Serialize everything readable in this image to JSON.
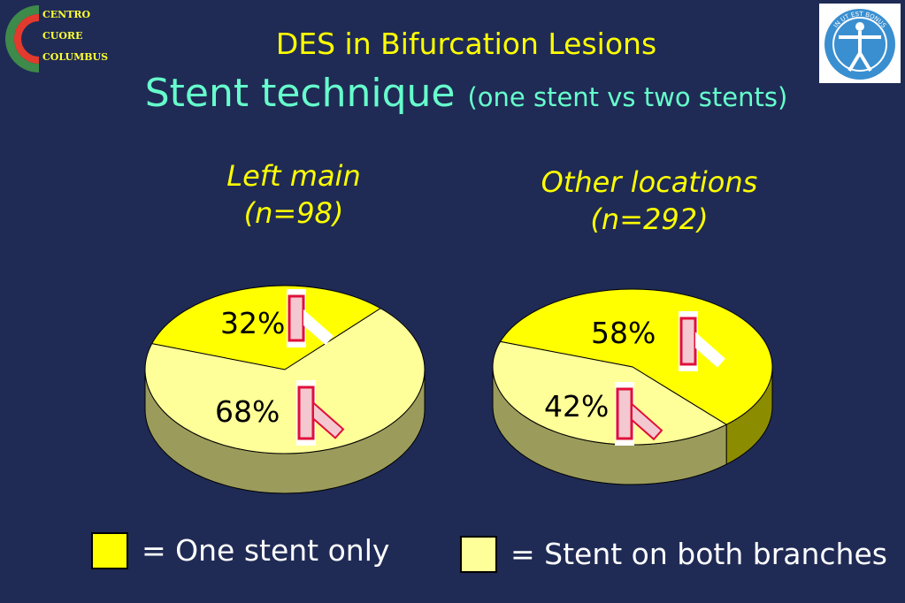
{
  "logo_left": {
    "lines": [
      "CENTRO",
      "CUORE",
      "COLUMBUS"
    ]
  },
  "logo_right": {
    "text": "IN UT EST BONUS"
  },
  "header": {
    "title": "DES in Bifurcation Lesions",
    "subtitle_main": "Stent technique",
    "subtitle_paren": "(one stent vs two stents)"
  },
  "colors": {
    "background": "#1f2b55",
    "one_stent": "#ffff00",
    "both_branches": "#ffff99",
    "title": "#ffff00",
    "subtitle": "#66ffcc"
  },
  "legend": [
    {
      "label": "= One stent only",
      "color": "#ffff00"
    },
    {
      "label": "= Stent on both branches",
      "color": "#ffff99"
    }
  ],
  "chart_data": [
    {
      "type": "pie",
      "style": "3d",
      "title": "Left main",
      "n_label": "(n=98)",
      "slices": [
        {
          "series": "One stent only",
          "value": 32,
          "label": "32%",
          "icon": "single-stent-icon"
        },
        {
          "series": "Stent on both branches",
          "value": 68,
          "label": "68%",
          "icon": "two-stents-icon"
        }
      ]
    },
    {
      "type": "pie",
      "style": "3d",
      "title": "Other locations",
      "n_label": "(n=292)",
      "slices": [
        {
          "series": "One stent only",
          "value": 58,
          "label": "58%",
          "icon": "single-stent-icon"
        },
        {
          "series": "Stent on both branches",
          "value": 42,
          "label": "42%",
          "icon": "two-stents-icon"
        }
      ]
    }
  ]
}
